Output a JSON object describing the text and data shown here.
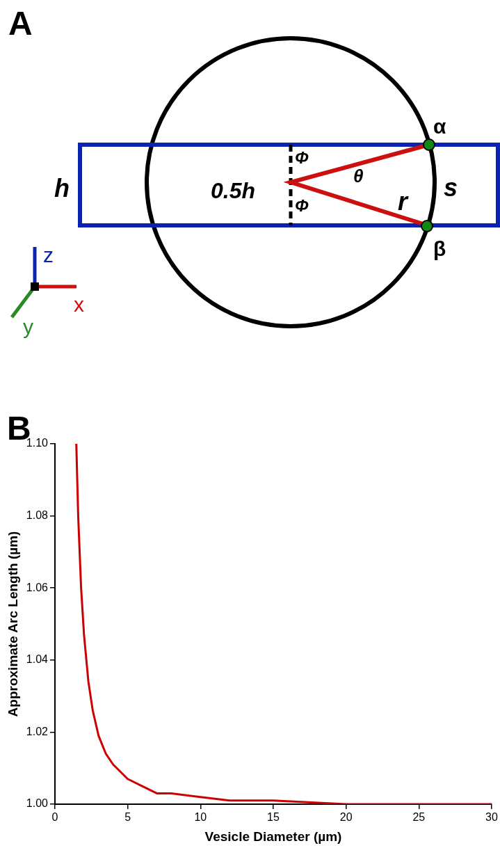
{
  "chart_data": {
    "type": "line",
    "annotations": [
      "A",
      "h",
      "0.5h",
      "Φ",
      "Φ",
      "θ",
      "r",
      "s",
      "α",
      "β",
      "z",
      "x",
      "y",
      "B"
    ],
    "xlabel": "Vesicle Diameter (µm)",
    "ylabel": "Approximate Arc Length (µm)",
    "x": [
      1.47,
      1.6,
      1.8,
      2,
      2.3,
      2.6,
      3,
      3.5,
      4,
      5,
      6,
      7,
      8,
      10,
      12,
      15,
      20,
      25,
      30
    ],
    "values": [
      1.1,
      1.08,
      1.06,
      1.047,
      1.034,
      1.026,
      1.019,
      1.014,
      1.011,
      1.007,
      1.005,
      1.003,
      1.003,
      1.002,
      1.001,
      1.001,
      1.0,
      1.0,
      1.0
    ],
    "color": "#cc0000",
    "xlim": [
      0,
      30
    ],
    "xticks": [
      0,
      5,
      10,
      15,
      20,
      25,
      30
    ],
    "ylim": [
      1,
      1.1
    ],
    "yticks": [
      {
        "value": 1,
        "label": "1.00"
      },
      {
        "value": 1.02,
        "label": "1.02"
      },
      {
        "value": 1.04,
        "label": "1.04"
      },
      {
        "value": 1.06,
        "label": "1.06"
      },
      {
        "value": 1.08,
        "label": "1.08"
      },
      {
        "value": 1.1,
        "label": "1.10"
      }
    ],
    "grid": false,
    "legend": false,
    "marker": "none"
  }
}
